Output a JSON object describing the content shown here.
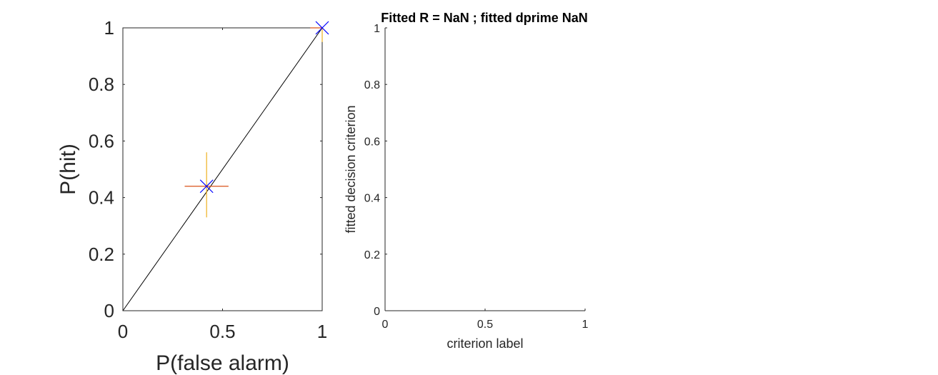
{
  "chart_data": [
    {
      "type": "scatter",
      "title": "",
      "xlabel": "P(false alarm)",
      "ylabel": "P(hit)",
      "xlim": [
        0,
        1
      ],
      "ylim": [
        0,
        1
      ],
      "xticks": [
        "0",
        "0.5",
        "1"
      ],
      "yticks": [
        "0",
        "0.2",
        "0.4",
        "0.6",
        "0.8",
        "1"
      ],
      "grid": false,
      "box": true,
      "chance_line": {
        "x": [
          0,
          1
        ],
        "y": [
          0,
          1
        ],
        "color": "#000000"
      },
      "points": [
        {
          "x": 0.42,
          "y": 0.44,
          "marker": "x",
          "color": "#0000ff",
          "xerr": [
            0.31,
            0.53
          ],
          "yerr": [
            0.33,
            0.56
          ]
        },
        {
          "x": 1.0,
          "y": 1.0,
          "marker": "x",
          "color": "#0000ff",
          "xerr": [
            0.94,
            1.0
          ],
          "yerr": [
            0.95,
            1.0
          ]
        }
      ],
      "errorbar_colors": {
        "x": "#d95319",
        "y": "#edb120"
      }
    },
    {
      "type": "scatter",
      "title": "Fitted R = NaN ; fitted dprime NaN",
      "xlabel": "criterion label",
      "ylabel": "fitted decision criterion",
      "xlim": [
        0,
        1
      ],
      "ylim": [
        0,
        1
      ],
      "xticks": [
        "0",
        "0.5",
        "1"
      ],
      "yticks": [
        "0",
        "0.2",
        "0.4",
        "0.6",
        "0.8",
        "1"
      ],
      "grid": false,
      "box": false,
      "points": []
    }
  ]
}
